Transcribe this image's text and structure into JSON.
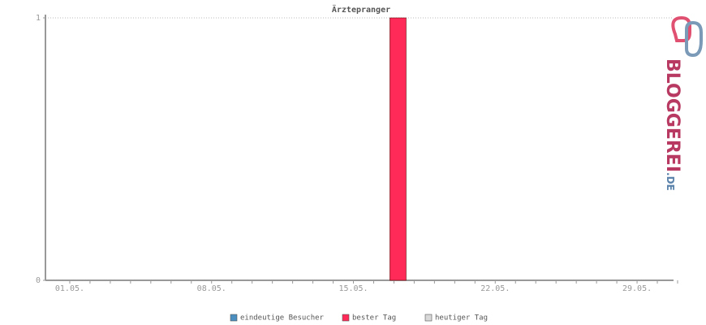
{
  "chart_data": {
    "type": "bar",
    "title": "Ärztepranger",
    "categories": [
      "01.05.",
      null,
      null,
      null,
      null,
      null,
      null,
      "08.05.",
      null,
      null,
      null,
      null,
      null,
      null,
      "15.05.",
      null,
      null,
      null,
      null,
      null,
      null,
      "22.05.",
      null,
      null,
      null,
      null,
      null,
      null,
      "29.05.",
      null,
      null
    ],
    "series": [
      {
        "name": "eindeutige Besucher",
        "color": "#4a8fc0",
        "values": [
          0,
          0,
          0,
          0,
          0,
          0,
          0,
          0,
          0,
          0,
          0,
          0,
          0,
          0,
          0,
          0,
          0,
          0,
          0,
          0,
          0,
          0,
          0,
          0,
          0,
          0,
          0,
          0,
          0,
          0,
          0
        ]
      },
      {
        "name": "bester Tag",
        "color": "#ff2a58",
        "values": [
          null,
          null,
          null,
          null,
          null,
          null,
          null,
          null,
          null,
          null,
          null,
          null,
          null,
          null,
          null,
          null,
          null,
          1,
          null,
          null,
          null,
          null,
          null,
          null,
          null,
          null,
          null,
          null,
          null,
          null,
          null
        ]
      },
      {
        "name": "heutiger Tag",
        "color": "#d8d8d8",
        "values": [
          null,
          null,
          null,
          null,
          null,
          null,
          null,
          null,
          null,
          null,
          null,
          null,
          null,
          null,
          null,
          null,
          null,
          null,
          null,
          null,
          null,
          null,
          null,
          null,
          null,
          null,
          null,
          null,
          null,
          null,
          null
        ]
      }
    ],
    "ylim": [
      0,
      1
    ],
    "yticks": [
      0,
      1
    ],
    "grid": true
  },
  "logo": {
    "name": "BLOGGEREI",
    "tld": ".DE"
  }
}
